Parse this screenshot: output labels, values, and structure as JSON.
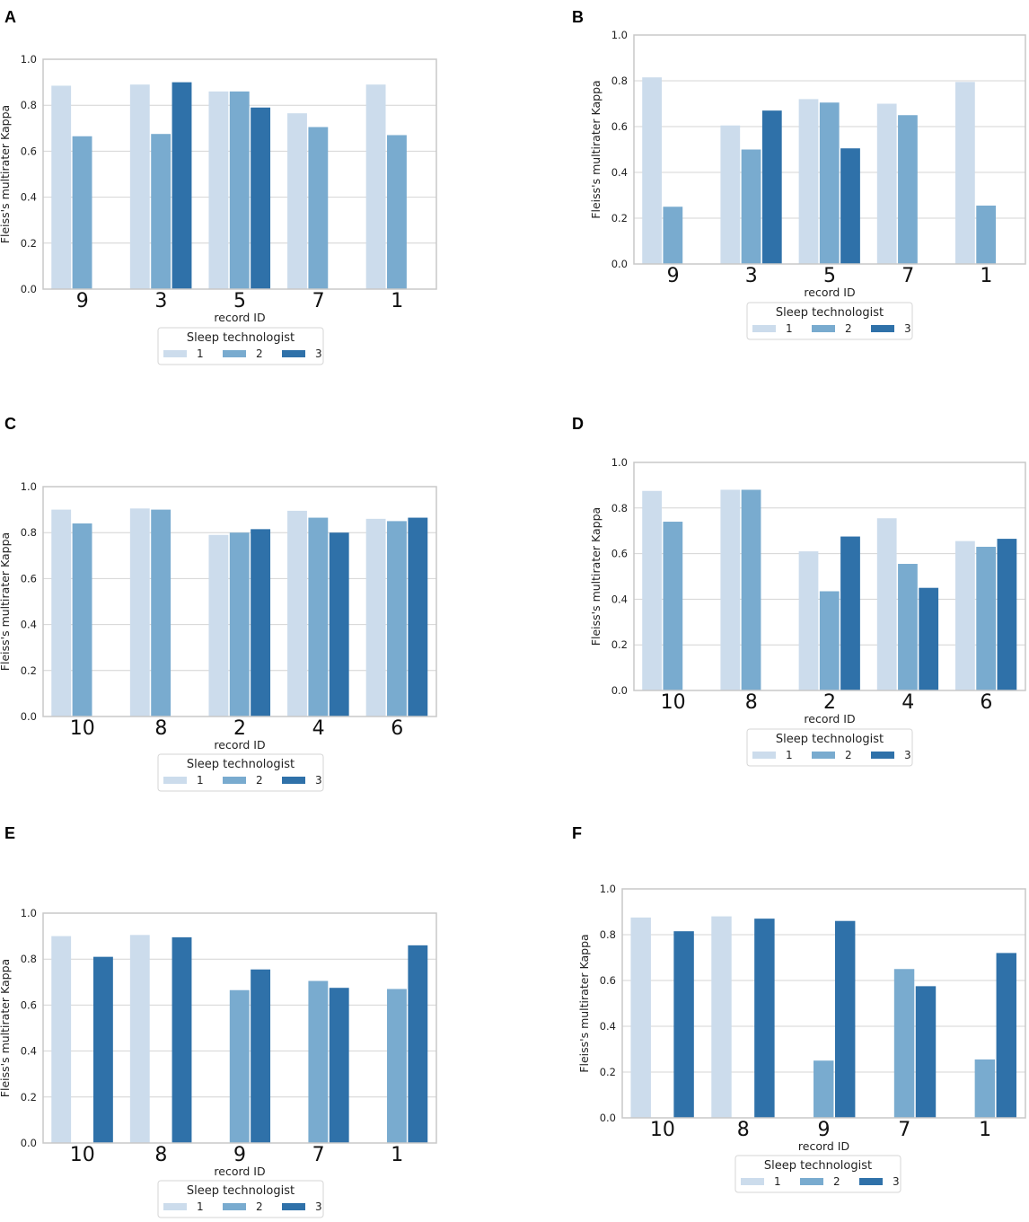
{
  "colors": {
    "tech1": "#ccdcec",
    "tech2": "#79abcf",
    "tech3": "#2f71a9",
    "grid": "#d4d4d4",
    "axis": "#c8c8c8"
  },
  "chart_data": [
    {
      "panel": "A",
      "type": "bar",
      "categories": [
        "9",
        "3",
        "5",
        "7",
        "1"
      ],
      "series": [
        {
          "name": "1",
          "values": [
            0.885,
            0.89,
            0.86,
            0.765,
            0.89
          ]
        },
        {
          "name": "2",
          "values": [
            0.665,
            0.675,
            0.86,
            0.705,
            0.67
          ]
        },
        {
          "name": "3",
          "values": [
            null,
            0.9,
            0.79,
            null,
            null
          ]
        }
      ],
      "xlabel": "record ID",
      "ylabel": "Fleiss's multirater Kappa",
      "ylim": [
        0,
        1
      ],
      "yticks": [
        "0.0",
        "0.2",
        "0.4",
        "0.6",
        "0.8",
        "1.0"
      ],
      "legend_title": "Sleep technologist",
      "grid": true
    },
    {
      "panel": "B",
      "type": "bar",
      "categories": [
        "9",
        "3",
        "5",
        "7",
        "1"
      ],
      "series": [
        {
          "name": "1",
          "values": [
            0.815,
            0.605,
            0.72,
            0.7,
            0.795
          ]
        },
        {
          "name": "2",
          "values": [
            0.25,
            0.5,
            0.705,
            0.65,
            0.255
          ]
        },
        {
          "name": "3",
          "values": [
            null,
            0.67,
            0.505,
            null,
            null
          ]
        }
      ],
      "xlabel": "record ID",
      "ylabel": "Fleiss's multirater Kappa",
      "ylim": [
        0,
        1
      ],
      "yticks": [
        "0.0",
        "0.2",
        "0.4",
        "0.6",
        "0.8",
        "1.0"
      ],
      "legend_title": "Sleep technologist",
      "grid": true
    },
    {
      "panel": "C",
      "type": "bar",
      "categories": [
        "10",
        "8",
        "2",
        "4",
        "6"
      ],
      "series": [
        {
          "name": "1",
          "values": [
            0.9,
            0.905,
            0.79,
            0.895,
            0.86
          ]
        },
        {
          "name": "2",
          "values": [
            0.84,
            0.9,
            0.8,
            0.865,
            0.85
          ]
        },
        {
          "name": "3",
          "values": [
            null,
            null,
            0.815,
            0.8,
            0.865
          ]
        }
      ],
      "xlabel": "record ID",
      "ylabel": "Fleiss's multirater Kappa",
      "ylim": [
        0,
        1
      ],
      "yticks": [
        "0.0",
        "0.2",
        "0.4",
        "0.6",
        "0.8",
        "1.0"
      ],
      "legend_title": "Sleep technologist",
      "grid": true
    },
    {
      "panel": "D",
      "type": "bar",
      "categories": [
        "10",
        "8",
        "2",
        "4",
        "6"
      ],
      "series": [
        {
          "name": "1",
          "values": [
            0.875,
            0.88,
            0.61,
            0.755,
            0.655
          ]
        },
        {
          "name": "2",
          "values": [
            0.74,
            0.88,
            0.435,
            0.555,
            0.63
          ]
        },
        {
          "name": "3",
          "values": [
            null,
            null,
            0.675,
            0.45,
            0.665
          ]
        }
      ],
      "xlabel": "record ID",
      "ylabel": "Fleiss's multirater Kappa",
      "ylim": [
        0,
        1
      ],
      "yticks": [
        "0.0",
        "0.2",
        "0.4",
        "0.6",
        "0.8",
        "1.0"
      ],
      "legend_title": "Sleep technologist",
      "grid": true
    },
    {
      "panel": "E",
      "type": "bar",
      "categories": [
        "10",
        "8",
        "9",
        "7",
        "1"
      ],
      "series": [
        {
          "name": "1",
          "values": [
            0.9,
            0.905,
            null,
            null,
            null
          ]
        },
        {
          "name": "2",
          "values": [
            null,
            null,
            0.665,
            0.705,
            0.67
          ]
        },
        {
          "name": "3",
          "values": [
            0.81,
            0.895,
            0.755,
            0.675,
            0.86
          ]
        }
      ],
      "xlabel": "record ID",
      "ylabel": "Fleiss's multirater Kappa",
      "ylim": [
        0,
        1
      ],
      "yticks": [
        "0.0",
        "0.2",
        "0.4",
        "0.6",
        "0.8",
        "1.0"
      ],
      "legend_title": "Sleep technologist",
      "grid": true
    },
    {
      "panel": "F",
      "type": "bar",
      "categories": [
        "10",
        "8",
        "9",
        "7",
        "1"
      ],
      "series": [
        {
          "name": "1",
          "values": [
            0.875,
            0.88,
            null,
            null,
            null
          ]
        },
        {
          "name": "2",
          "values": [
            null,
            null,
            0.25,
            0.65,
            0.255
          ]
        },
        {
          "name": "3",
          "values": [
            0.815,
            0.87,
            0.86,
            0.575,
            0.72
          ]
        }
      ],
      "xlabel": "record ID",
      "ylabel": "Fleiss's multirater Kappa",
      "ylim": [
        0,
        1
      ],
      "yticks": [
        "0.0",
        "0.2",
        "0.4",
        "0.6",
        "0.8",
        "1.0"
      ],
      "legend_title": "Sleep technologist",
      "grid": true
    }
  ]
}
